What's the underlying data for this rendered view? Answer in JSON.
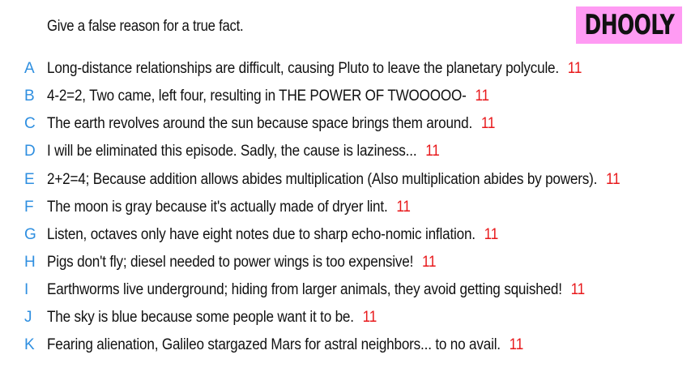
{
  "prompt": "Give a false reason for a true fact.",
  "brand": "DHOOLY",
  "entries": [
    {
      "letter": "A",
      "text": "Long-distance relationships are difficult, causing Pluto to leave the planetary polycule.",
      "score": "11"
    },
    {
      "letter": "B",
      "text": "4-2=2, Two came, left four, resulting in THE POWER OF TWOOOOO-",
      "score": "11"
    },
    {
      "letter": "C",
      "text": "The earth revolves around the sun because space brings them around.",
      "score": "11"
    },
    {
      "letter": "D",
      "text": "I will be eliminated this episode. Sadly, the cause is laziness...",
      "score": "11"
    },
    {
      "letter": "E",
      "text": "2+2=4; Because addition allows abides multiplication (Also multiplication abides by powers).",
      "score": "11"
    },
    {
      "letter": "F",
      "text": "The moon is gray because it's actually made of dryer lint.",
      "score": "11"
    },
    {
      "letter": "G",
      "text": "Listen, octaves only have eight notes due to sharp echo-nomic inflation.",
      "score": "11"
    },
    {
      "letter": "H",
      "text": "Pigs don't fly; diesel needed to power wings is too expensive!",
      "score": "11"
    },
    {
      "letter": "I",
      "text": "Earthworms live underground; hiding from larger animals, they avoid getting squished!",
      "score": "11"
    },
    {
      "letter": "J",
      "text": "The sky is blue because some people want it to be.",
      "score": "11"
    },
    {
      "letter": "K",
      "text": "Fearing alienation, Galileo stargazed Mars for astral neighbors... to no avail.",
      "score": "11"
    }
  ]
}
